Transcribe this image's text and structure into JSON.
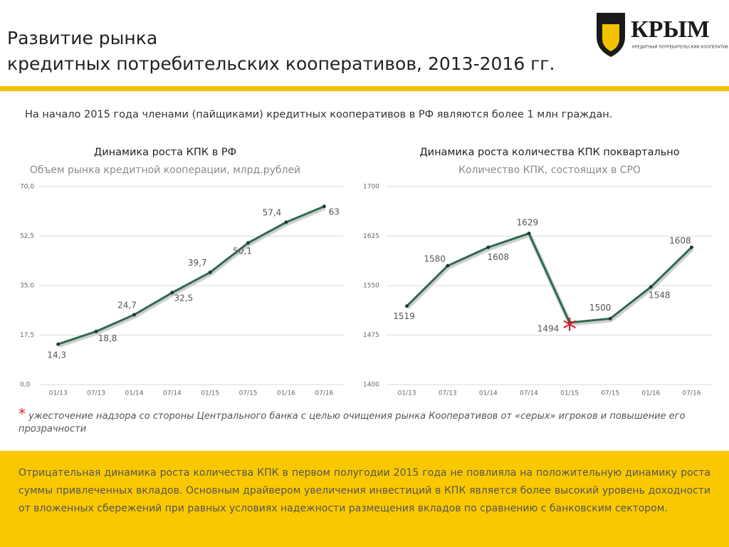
{
  "header": {
    "title_lines": [
      "Развитие рынка",
      "кредитных потребительских кооперативов, 2013-2016 гг."
    ]
  },
  "logo": {
    "name": "КРЫМ",
    "tagline": "КРЕДИТНЫЙ ПОТРЕБИТЕЛЬСКИЙ КООПЕРАТИВ"
  },
  "intro": "На начало 2015 года членами (пайщиками) кредитных кооперативов в РФ являются более 1 млн граждан.",
  "chart_data": [
    {
      "type": "line",
      "title": "Динамика роста КПК в РФ",
      "subtitle": "Объем рынка кредитной кооперации, млрд.рублей",
      "categories": [
        "01/13",
        "07/13",
        "01/14",
        "07/14",
        "01/15",
        "07/15",
        "01/16",
        "07/16"
      ],
      "values": [
        14.3,
        18.8,
        24.7,
        32.5,
        39.7,
        50.1,
        57.4,
        63
      ],
      "value_labels": [
        "14,3",
        "18,8",
        "24,7",
        "32,5",
        "39,7",
        "50,1",
        "57,4",
        "63"
      ],
      "color": "#2e6b4e",
      "ylim": [
        0,
        70
      ],
      "yticks": [
        {
          "value": 0,
          "label": "0,0"
        },
        {
          "value": 17.5,
          "label": "17,5"
        },
        {
          "value": 35,
          "label": "35,0"
        },
        {
          "value": 52.5,
          "label": "52,5"
        },
        {
          "value": 70,
          "label": "70,0"
        }
      ],
      "grid": true
    },
    {
      "type": "line",
      "title": "Динамика роста количества КПК поквартально",
      "subtitle": "Количество КПК, состоящих в СРО",
      "categories": [
        "01/13",
        "07/13",
        "01/14",
        "07/14",
        "01/15",
        "07/15",
        "01/16",
        "07/16"
      ],
      "values": [
        1519,
        1580,
        1608,
        1629,
        1494,
        1500,
        1548,
        1608
      ],
      "color": "#2e6b4e",
      "ylim": [
        1400,
        1700
      ],
      "yticks": [
        1400,
        1475,
        1550,
        1625,
        1700
      ],
      "grid": true,
      "annotation": "*"
    }
  ],
  "footnote": {
    "marker": "*",
    "text": "ужесточение надзора со стороны Центрального банка с целью очищения рынка Кооперативов от «серых» игроков  и повышение его прозрачности"
  },
  "summary": "Отрицательная динамика роста количества КПК в первом полугодии 2015 года не повлияла на положительную динамику роста суммы привлеченных вкладов. Основным драйвером увеличения инвестиций в КПК является более высокий уровень доходности от вложенных сбережений при равных условиях надежности размещения вкладов по сравнению с банковским сектором."
}
